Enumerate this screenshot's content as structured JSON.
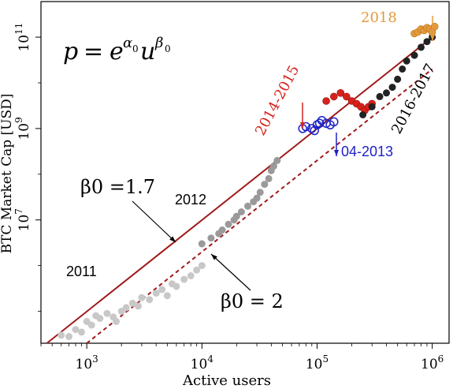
{
  "chart_data": {
    "type": "scatter",
    "xlabel": "Active users",
    "ylabel": "BTC Market Cap [USD]",
    "xscale": "log",
    "yscale": "log",
    "xlim": [
      400,
      1400000
    ],
    "ylim": [
      20000,
      600000000000
    ],
    "x_ticks": [
      {
        "value": 1000,
        "base": "10",
        "exp": "3"
      },
      {
        "value": 10000,
        "base": "10",
        "exp": "4"
      },
      {
        "value": 100000,
        "base": "10",
        "exp": "5"
      },
      {
        "value": 1000000,
        "base": "10",
        "exp": "6"
      }
    ],
    "y_ticks": [
      {
        "value": 10000000,
        "base": "10",
        "exp": "7"
      },
      {
        "value": 1000000000,
        "base": "10",
        "exp": "9"
      },
      {
        "value": 100000000000,
        "base": "10",
        "exp": "11"
      }
    ],
    "formula": {
      "lhs": "p",
      "base": "e",
      "exp1": "α",
      "exp1_sub": "0",
      "var": "u",
      "exp2": "β",
      "exp2_sub": "0"
    },
    "fits": [
      {
        "name": "β0 = 1.7",
        "beta": 1.7,
        "style": "solid",
        "color": "#a01a1a",
        "points": [
          [
            450,
            20000
          ],
          [
            1000000,
            100000000000
          ]
        ]
      },
      {
        "name": "β0 = 2",
        "beta": 2.0,
        "style": "dashed",
        "color": "#a01a1a",
        "points": [
          [
            1000,
            20000
          ],
          [
            1000000,
            20000000000
          ]
        ]
      }
    ],
    "annotations": [
      {
        "text": "2011",
        "color": "#000000"
      },
      {
        "text": "2012",
        "color": "#000000"
      },
      {
        "text": "2014-2015",
        "color": "#d6221b"
      },
      {
        "text": "04-2013",
        "color": "#1f22c8"
      },
      {
        "text": "2016-2017",
        "color": "#000000"
      },
      {
        "text": "2018",
        "color": "#e39a3c"
      },
      {
        "text": "β0 =1.7",
        "color": "#000000"
      },
      {
        "text": "β0 = 2",
        "color": "#000000"
      }
    ],
    "series": [
      {
        "name": "2011",
        "color": "#c8c8c8",
        "points": [
          [
            600,
            30000
          ],
          [
            700,
            28000
          ],
          [
            800,
            40000
          ],
          [
            900,
            35000
          ],
          [
            1000,
            60000
          ],
          [
            1100,
            50000
          ],
          [
            1200,
            80000
          ],
          [
            1300,
            70000
          ],
          [
            1500,
            90000
          ],
          [
            1700,
            75000
          ],
          [
            2000,
            100000
          ],
          [
            1800,
            60000
          ],
          [
            2200,
            120000
          ],
          [
            2500,
            150000
          ],
          [
            2800,
            130000
          ],
          [
            3000,
            200000
          ],
          [
            3500,
            180000
          ],
          [
            4000,
            250000
          ],
          [
            4500,
            300000
          ],
          [
            5000,
            220000
          ],
          [
            5500,
            400000
          ],
          [
            6000,
            350000
          ],
          [
            7000,
            500000
          ],
          [
            8000,
            600000
          ],
          [
            9000,
            800000
          ],
          [
            10000,
            1000000
          ]
        ]
      },
      {
        "name": "2012",
        "color": "#9a9a9a",
        "points": [
          [
            10000,
            3000000
          ],
          [
            12000,
            4000000
          ],
          [
            14000,
            5000000
          ],
          [
            15000,
            6000000
          ],
          [
            17000,
            8000000
          ],
          [
            19000,
            10000000
          ],
          [
            20000,
            12000000
          ],
          [
            22000,
            15000000
          ],
          [
            25000,
            20000000
          ],
          [
            28000,
            25000000
          ],
          [
            30000,
            30000000
          ],
          [
            32000,
            40000000
          ],
          [
            35000,
            60000000
          ],
          [
            38000,
            80000000
          ],
          [
            40000,
            120000000
          ],
          [
            42000,
            150000000
          ],
          [
            45000,
            200000000
          ]
        ]
      },
      {
        "name": "04-2013",
        "color": "#1f22c8",
        "points": [
          [
            75000,
            1000000000
          ],
          [
            80000,
            1100000000
          ],
          [
            90000,
            1000000000
          ],
          [
            95000,
            900000000
          ],
          [
            100000,
            1200000000
          ],
          [
            105000,
            1300000000
          ],
          [
            110000,
            1500000000
          ],
          [
            120000,
            1300000000
          ],
          [
            130000,
            1200000000
          ],
          [
            140000,
            1400000000
          ]
        ]
      },
      {
        "name": "2014-2015",
        "color": "#d6221b",
        "points": [
          [
            120000,
            4000000000
          ],
          [
            140000,
            5000000000
          ],
          [
            160000,
            6000000000
          ],
          [
            180000,
            5000000000
          ],
          [
            200000,
            4000000000
          ],
          [
            220000,
            3500000000
          ],
          [
            240000,
            3000000000
          ],
          [
            260000,
            2500000000
          ],
          [
            280000,
            3000000000
          ],
          [
            300000,
            3500000000
          ]
        ]
      },
      {
        "name": "2016-2017",
        "color": "#222222",
        "points": [
          [
            250000,
            2000000000
          ],
          [
            300000,
            3000000000
          ],
          [
            350000,
            5000000000
          ],
          [
            400000,
            6000000000
          ],
          [
            450000,
            8000000000
          ],
          [
            500000,
            12000000000
          ],
          [
            550000,
            20000000000
          ],
          [
            600000,
            30000000000
          ],
          [
            700000,
            40000000000
          ],
          [
            800000,
            60000000000
          ],
          [
            900000,
            80000000000
          ],
          [
            1000000,
            100000000000
          ]
        ]
      },
      {
        "name": "2018",
        "color": "#e39a3c",
        "points": [
          [
            700000,
            120000000000
          ],
          [
            750000,
            130000000000
          ],
          [
            800000,
            150000000000
          ],
          [
            850000,
            140000000000
          ],
          [
            900000,
            160000000000
          ],
          [
            950000,
            150000000000
          ],
          [
            1000000,
            130000000000
          ],
          [
            1050000,
            170000000000
          ]
        ]
      }
    ]
  }
}
